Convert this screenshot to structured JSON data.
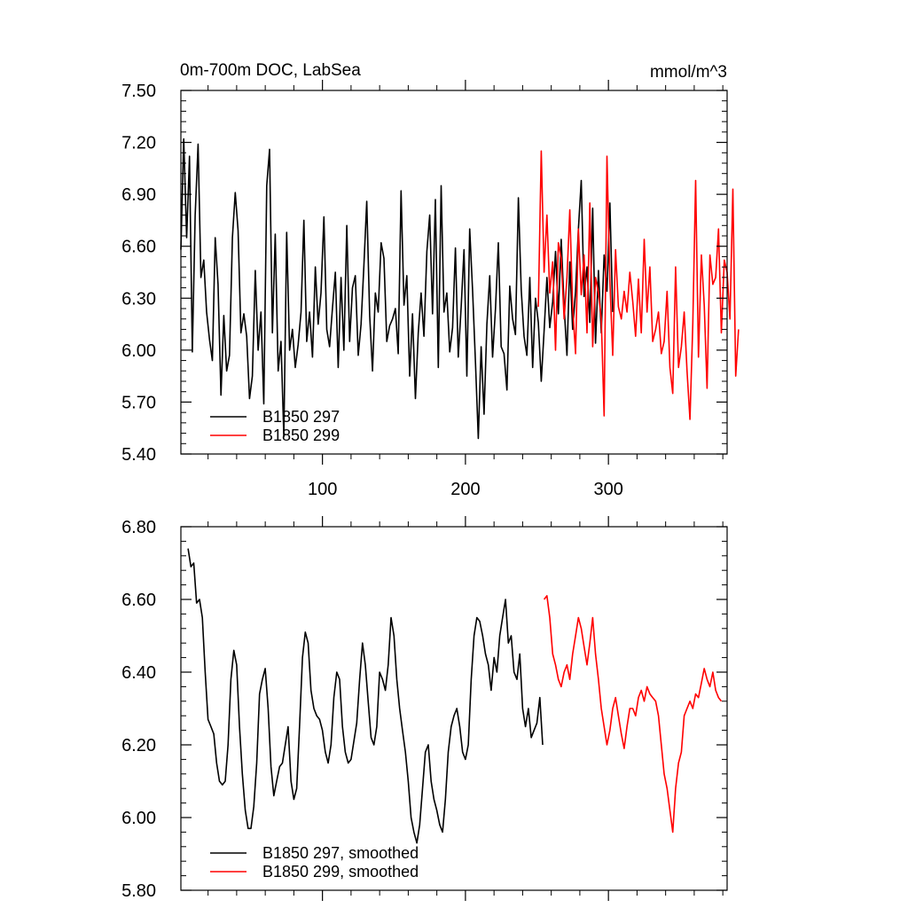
{
  "chart_data": [
    {
      "type": "line",
      "title": "0m-700m DOC, LabSea",
      "units": "mmol/m^3",
      "xlim": [
        1,
        383
      ],
      "ylim": [
        5.4,
        7.5
      ],
      "x_ticks": [
        100,
        200,
        300
      ],
      "x_tick_labels": [
        "100",
        "200",
        "300"
      ],
      "y_ticks": [
        5.4,
        5.7,
        6.0,
        6.3,
        6.6,
        6.9,
        7.2,
        7.5
      ],
      "y_tick_labels": [
        "5.40",
        "5.70",
        "6.00",
        "6.30",
        "6.60",
        "6.90",
        "7.20",
        "7.50"
      ],
      "legend_position": "bottom-left",
      "series": [
        {
          "name": "B1850 297",
          "color": "#000000",
          "x_start": 1,
          "x_step": 2,
          "values": [
            6.58,
            7.22,
            6.65,
            7.12,
            5.99,
            6.78,
            7.19,
            6.42,
            6.52,
            6.22,
            6.06,
            5.94,
            6.65,
            6.38,
            5.74,
            6.2,
            5.88,
            5.97,
            6.65,
            6.91,
            6.69,
            6.1,
            6.21,
            6.08,
            5.72,
            5.85,
            6.46,
            6.0,
            6.22,
            5.69,
            6.95,
            7.16,
            6.1,
            6.67,
            5.88,
            6.05,
            5.5,
            6.68,
            6.0,
            6.12,
            5.9,
            6.03,
            6.22,
            6.75,
            6.05,
            6.22,
            5.96,
            6.48,
            6.15,
            6.33,
            6.77,
            6.12,
            6.02,
            6.24,
            6.45,
            5.9,
            6.42,
            6.0,
            6.72,
            6.05,
            6.36,
            6.43,
            5.97,
            6.15,
            6.49,
            6.86,
            6.2,
            5.88,
            6.33,
            6.22,
            6.62,
            6.53,
            6.05,
            6.14,
            6.18,
            6.24,
            5.98,
            6.92,
            6.26,
            6.43,
            5.85,
            6.21,
            5.72,
            6.1,
            6.33,
            6.08,
            6.57,
            6.78,
            6.21,
            6.87,
            5.9,
            6.95,
            6.22,
            6.33,
            5.99,
            6.13,
            6.59,
            5.96,
            6.25,
            6.58,
            5.85,
            6.7,
            6.34,
            5.93,
            5.49,
            6.02,
            5.63,
            6.15,
            6.43,
            5.96,
            6.24,
            6.62,
            6.02,
            5.98,
            5.77,
            6.37,
            6.18,
            6.09,
            6.88,
            6.35,
            6.08,
            5.97,
            6.42,
            5.9,
            6.3,
            6.16,
            5.82,
            6.11,
            6.42,
            6.13,
            6.28,
            6.57,
            6.21,
            6.64,
            6.25,
            5.97,
            6.51,
            6.12,
            6.34,
            6.7,
            6.98,
            6.31,
            6.48,
            6.16,
            6.82,
            6.04,
            6.46,
            6.1,
            6.55,
            6.34,
            6.85,
            6.22
          ],
          "legend_label": "B1850 297"
        },
        {
          "name": "B1850 299",
          "color": "#ff0000",
          "x_start": 251,
          "x_step": 2,
          "values": [
            6.25,
            7.15,
            6.45,
            6.78,
            6.33,
            6.51,
            6.0,
            6.62,
            6.53,
            6.18,
            6.42,
            6.81,
            6.25,
            5.98,
            6.7,
            6.32,
            6.55,
            6.1,
            6.85,
            6.02,
            6.42,
            6.33,
            6.18,
            5.62,
            7.12,
            6.4,
            5.97,
            6.58,
            6.25,
            6.18,
            6.34,
            6.22,
            6.45,
            6.28,
            6.08,
            6.41,
            6.1,
            6.64,
            6.22,
            6.48,
            6.05,
            6.12,
            6.22,
            5.98,
            6.05,
            6.34,
            5.9,
            5.75,
            6.48,
            5.9,
            6.02,
            6.22,
            5.88,
            5.6,
            6.15,
            6.98,
            5.96,
            6.55,
            6.26,
            5.78,
            6.55,
            6.38,
            6.42,
            6.7,
            6.1,
            6.52,
            6.45,
            6.18,
            6.93,
            5.85,
            6.12
          ],
          "legend_label": "B1850 299"
        }
      ]
    },
    {
      "type": "line",
      "title": "",
      "xlim": [
        1,
        383
      ],
      "ylim": [
        5.8,
        6.8
      ],
      "x_ticks": [
        100,
        200,
        300
      ],
      "x_tick_labels": [],
      "y_ticks": [
        5.8,
        6.0,
        6.2,
        6.4,
        6.6,
        6.8
      ],
      "y_tick_labels": [
        "5.80",
        "6.00",
        "6.20",
        "6.40",
        "6.60",
        "6.80"
      ],
      "legend_position": "bottom-left",
      "series": [
        {
          "name": "B1850 297, smoothed",
          "color": "#000000",
          "x_start": 6,
          "x_step": 2,
          "values": [
            6.74,
            6.69,
            6.7,
            6.59,
            6.6,
            6.55,
            6.4,
            6.27,
            6.25,
            6.23,
            6.15,
            6.1,
            6.09,
            6.1,
            6.2,
            6.38,
            6.46,
            6.42,
            6.25,
            6.12,
            6.02,
            5.97,
            5.97,
            6.03,
            6.15,
            6.34,
            6.38,
            6.41,
            6.3,
            6.14,
            6.06,
            6.1,
            6.14,
            6.15,
            6.2,
            6.25,
            6.1,
            6.05,
            6.08,
            6.25,
            6.44,
            6.51,
            6.48,
            6.35,
            6.3,
            6.28,
            6.27,
            6.24,
            6.18,
            6.15,
            6.2,
            6.33,
            6.4,
            6.38,
            6.25,
            6.18,
            6.15,
            6.16,
            6.21,
            6.26,
            6.38,
            6.48,
            6.42,
            6.32,
            6.22,
            6.2,
            6.25,
            6.4,
            6.38,
            6.35,
            6.42,
            6.55,
            6.5,
            6.38,
            6.3,
            6.24,
            6.18,
            6.1,
            6.0,
            5.96,
            5.93,
            5.98,
            6.08,
            6.18,
            6.2,
            6.1,
            6.05,
            6.02,
            5.98,
            5.96,
            6.05,
            6.18,
            6.25,
            6.28,
            6.3,
            6.25,
            6.18,
            6.16,
            6.2,
            6.38,
            6.5,
            6.55,
            6.54,
            6.5,
            6.45,
            6.42,
            6.35,
            6.44,
            6.4,
            6.5,
            6.55,
            6.6,
            6.48,
            6.5,
            6.4,
            6.38,
            6.45,
            6.3,
            6.25,
            6.3,
            6.22,
            6.24,
            6.26,
            6.33,
            6.2
          ],
          "legend_label": "B1850 297, smoothed"
        },
        {
          "name": "B1850 299, smoothed",
          "color": "#ff0000",
          "x_start": 255,
          "x_step": 2,
          "values": [
            6.6,
            6.61,
            6.55,
            6.45,
            6.42,
            6.38,
            6.36,
            6.4,
            6.42,
            6.38,
            6.45,
            6.5,
            6.55,
            6.52,
            6.47,
            6.42,
            6.48,
            6.55,
            6.45,
            6.38,
            6.3,
            6.25,
            6.2,
            6.24,
            6.3,
            6.33,
            6.28,
            6.23,
            6.19,
            6.25,
            6.3,
            6.3,
            6.28,
            6.33,
            6.35,
            6.32,
            6.36,
            6.34,
            6.33,
            6.32,
            6.28,
            6.2,
            6.12,
            6.08,
            6.02,
            5.96,
            6.08,
            6.15,
            6.18,
            6.28,
            6.3,
            6.32,
            6.3,
            6.34,
            6.33,
            6.37,
            6.41,
            6.38,
            6.36,
            6.4,
            6.35,
            6.33,
            6.32
          ],
          "legend_label": "B1850 299, smoothed"
        }
      ]
    }
  ]
}
